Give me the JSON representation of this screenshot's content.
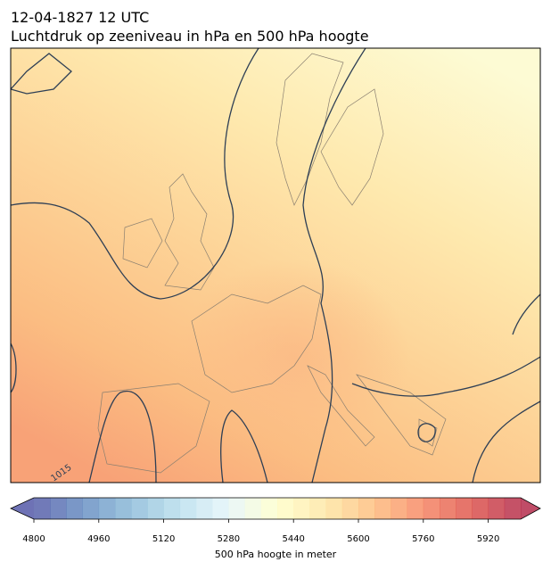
{
  "header": {
    "date": "12-04-1827 12 UTC",
    "title": "Luchtdruk op zeeniveau in hPa en 500 hPa hoogte"
  },
  "map": {
    "contour_label": "1015"
  },
  "colorbar": {
    "range": [
      4800,
      6000
    ],
    "step": 40,
    "ticks": [
      4800,
      4960,
      5120,
      5280,
      5440,
      5600,
      5760,
      5920
    ],
    "colors": [
      "#313695",
      "#4575b4",
      "#74add1",
      "#abd9e9",
      "#e0f3f8",
      "#ffffbf",
      "#fee090",
      "#fdae61",
      "#f46d43",
      "#d73027",
      "#a50026"
    ],
    "label": "500 hPa hoogte in meter"
  }
}
